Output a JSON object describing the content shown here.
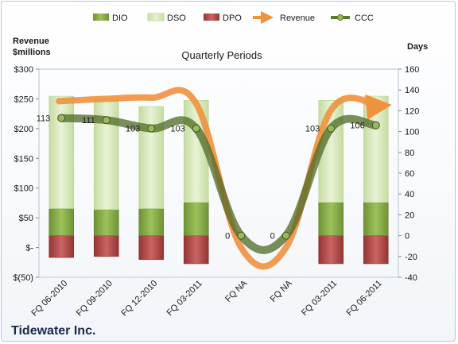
{
  "chart_data": {
    "type": "bar",
    "plot_title": "Quarterly Periods",
    "company": "Tidewater Inc.",
    "left_axis_title": [
      "Revenue",
      "$millions"
    ],
    "right_axis_title": "Days",
    "categories": [
      "FQ 06-2010",
      "FQ 09-2010",
      "FQ 12-2010",
      "FQ 03-2011",
      "FQ NA",
      "FQ NA",
      "FQ 03-2011",
      "FQ 06-2011"
    ],
    "left_ylim": [
      -50,
      300
    ],
    "left_ticks": [
      "$(50)",
      "$-",
      "$50",
      "$100",
      "$150",
      "$200",
      "$250",
      "$300"
    ],
    "right_ylim": [
      -40,
      160
    ],
    "right_ticks": [
      "-40",
      "-20",
      "0",
      "20",
      "40",
      "60",
      "80",
      "100",
      "120",
      "140",
      "160"
    ],
    "grid": false,
    "legend_position": "top",
    "series": [
      {
        "name": "DIO",
        "axis": "right",
        "kind": "stacked-bar",
        "color": "#8db14c",
        "values": [
          26,
          25,
          26,
          32,
          0,
          0,
          32,
          32
        ]
      },
      {
        "name": "DSO",
        "axis": "right",
        "kind": "stacked-bar",
        "color": "#d6e8b7",
        "values": [
          108,
          107,
          98,
          98,
          0,
          0,
          98,
          102
        ]
      },
      {
        "name": "DPO",
        "axis": "right",
        "kind": "negative-bar",
        "color": "#c0504d",
        "values": [
          -21,
          -20,
          -23,
          -27,
          0,
          0,
          -27,
          -27
        ]
      },
      {
        "name": "Revenue",
        "axis": "left",
        "kind": "line",
        "color": "#f0913e",
        "values": [
          246,
          250,
          252,
          242,
          0,
          0,
          231,
          238
        ]
      },
      {
        "name": "CCC",
        "axis": "right",
        "kind": "line",
        "color": "#5c7a2e",
        "values": [
          113,
          111,
          103,
          103,
          0,
          0,
          103,
          106
        ]
      }
    ],
    "ccc_labels": [
      "113",
      "111",
      "103",
      "103",
      "0",
      "0",
      "103",
      "106"
    ]
  }
}
